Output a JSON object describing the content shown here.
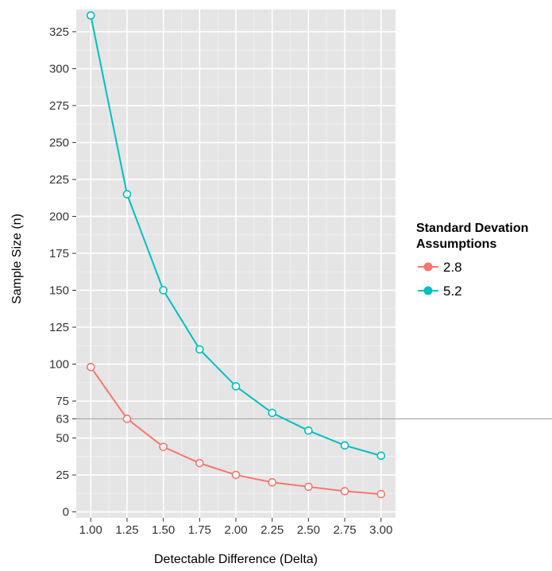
{
  "chart_data": {
    "type": "line",
    "xlabel": "Detectable Difference (Delta)",
    "ylabel": "Sample Size (n)",
    "x": [
      1.0,
      1.25,
      1.5,
      1.75,
      2.0,
      2.25,
      2.5,
      2.75,
      3.0
    ],
    "x_tick_labels": [
      "1.00",
      "1.25",
      "1.50",
      "1.75",
      "2.00",
      "2.25",
      "2.50",
      "2.75",
      "3.00"
    ],
    "y_ticks": [
      0,
      25,
      50,
      63,
      75,
      100,
      125,
      150,
      175,
      200,
      225,
      250,
      275,
      300,
      325
    ],
    "y_tick_labels": [
      "0",
      "25",
      "50",
      "63",
      "75",
      "100",
      "125",
      "150",
      "175",
      "200",
      "225",
      "250",
      "275",
      "300",
      "325"
    ],
    "xlim": [
      0.9,
      3.1
    ],
    "ylim": [
      -4,
      340
    ],
    "grid": true,
    "reference_line": {
      "y": 63,
      "color": "#999999"
    },
    "legend": {
      "title": "Standard Devation Assumptions",
      "title_lines": [
        "Standard Devation",
        "Assumptions"
      ],
      "position": "right"
    },
    "series": [
      {
        "name": "2.8",
        "color": "#F8766D",
        "values": [
          98,
          63,
          44,
          33,
          25,
          20,
          17,
          14,
          12
        ]
      },
      {
        "name": "5.2",
        "color": "#00BFC4",
        "values": [
          336,
          215,
          150,
          110,
          85,
          67,
          55,
          45,
          38
        ]
      }
    ]
  }
}
